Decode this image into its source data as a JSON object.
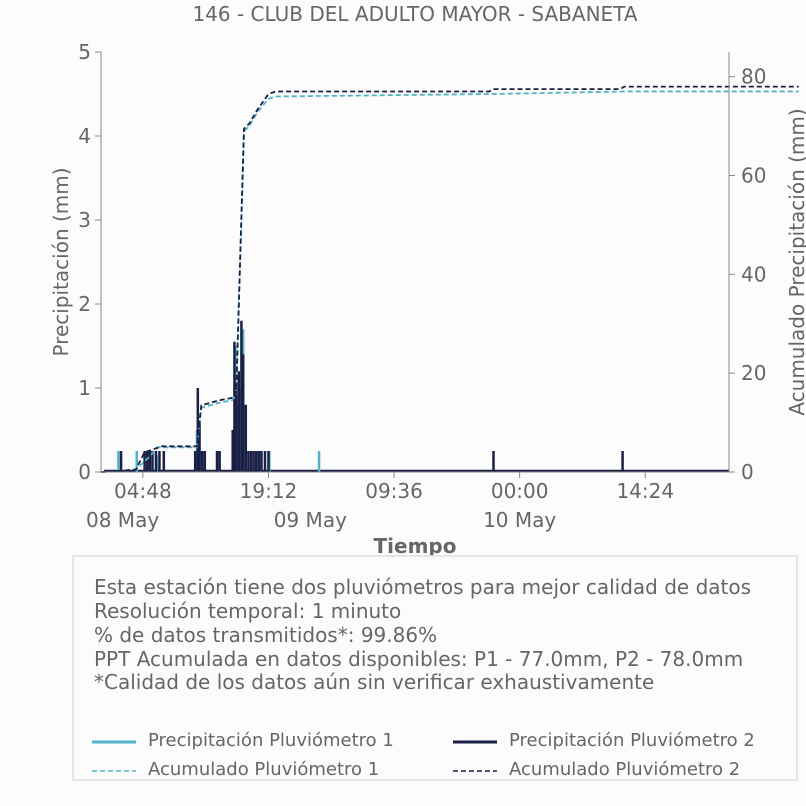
{
  "chart_data": {
    "type": "line",
    "title": "146 - CLUB DEL ADULTO MAYOR - SABANETA",
    "xlabel": "Tiempo",
    "ylabel_left": "Precipitación (mm)",
    "ylabel_right": "Acumulado Precipitación (mm)",
    "ylim_left": [
      0,
      5
    ],
    "ylim_right": [
      0,
      85
    ],
    "x_ticks": [
      "04:48",
      "19:12",
      "09:36",
      "00:00",
      "14:24"
    ],
    "x_date_labels": [
      "08 May",
      "09 May",
      "10 May"
    ],
    "y_ticks_left": [
      "0",
      "1",
      "2",
      "3",
      "4",
      "5"
    ],
    "y_ticks_right": [
      "0",
      "20",
      "40",
      "60",
      "80"
    ],
    "x_unit": "hours since 2024-05-08 00:00",
    "series": [
      {
        "name": "Precipitación Pluviómetro 1",
        "style": "solid",
        "color": "#4fb3c6",
        "spikes": [
          [
            2.0,
            0.25
          ],
          [
            4.1,
            0.25
          ],
          [
            5.5,
            0.25
          ],
          [
            6.4,
            0.2
          ],
          [
            11.0,
            0.5
          ],
          [
            11.4,
            0.25
          ],
          [
            13.5,
            0.25
          ],
          [
            15.4,
            1.5
          ],
          [
            15.7,
            0.8
          ],
          [
            16.0,
            1.0
          ],
          [
            16.3,
            1.7
          ],
          [
            17.2,
            0.25
          ],
          [
            18.2,
            0.25
          ],
          [
            19.3,
            0.25
          ],
          [
            25.0,
            0.25
          ]
        ]
      },
      {
        "name": "Precipitación Pluviómetro 2",
        "style": "solid",
        "color": "#1b1f45",
        "spikes": [
          [
            2.3,
            0.25
          ],
          [
            5.0,
            0.25
          ],
          [
            5.3,
            0.25
          ],
          [
            5.6,
            0.25
          ],
          [
            5.9,
            0.25
          ],
          [
            6.3,
            0.25
          ],
          [
            6.7,
            0.25
          ],
          [
            7.2,
            0.25
          ],
          [
            10.8,
            0.25
          ],
          [
            11.1,
            1.0
          ],
          [
            11.3,
            0.6
          ],
          [
            11.6,
            0.25
          ],
          [
            11.9,
            0.25
          ],
          [
            13.3,
            0.25
          ],
          [
            13.6,
            0.25
          ],
          [
            15.1,
            0.5
          ],
          [
            15.3,
            1.55
          ],
          [
            15.5,
            1.0
          ],
          [
            15.8,
            1.2
          ],
          [
            16.1,
            1.8
          ],
          [
            16.3,
            1.4
          ],
          [
            16.6,
            0.8
          ],
          [
            16.9,
            0.25
          ],
          [
            17.2,
            0.25
          ],
          [
            17.5,
            0.25
          ],
          [
            17.8,
            0.25
          ],
          [
            18.1,
            0.25
          ],
          [
            18.4,
            0.25
          ],
          [
            18.8,
            0.25
          ],
          [
            19.2,
            0.25
          ],
          [
            45.0,
            0.25
          ],
          [
            59.8,
            0.25
          ]
        ]
      },
      {
        "name": "Acumulado Pluviómetro 1",
        "style": "dashed",
        "color": "#4fb3c6",
        "x": [
          0,
          2.0,
          4.0,
          5.5,
          6.5,
          11.0,
          11.5,
          13.5,
          15.0,
          15.5,
          16.4,
          17.0,
          18.0,
          19.2,
          20.0,
          45.0,
          60.0,
          80.0
        ],
        "values": [
          0,
          0.2,
          0.5,
          3.0,
          5.0,
          5.0,
          13.0,
          14.0,
          14.5,
          15.5,
          69.0,
          70.0,
          73.0,
          75.5,
          76.0,
          76.5,
          77.0,
          77.0
        ]
      },
      {
        "name": "Acumulado Pluviómetro 2",
        "style": "dashed",
        "color": "#1b1f45",
        "x": [
          0,
          2.0,
          4.0,
          5.0,
          7.0,
          11.0,
          11.5,
          13.5,
          15.0,
          15.5,
          16.4,
          17.0,
          18.0,
          19.2,
          20.0,
          44.5,
          45.0,
          59.5,
          60.0,
          80.0
        ],
        "values": [
          0,
          0.2,
          0.5,
          4.0,
          5.2,
          5.2,
          13.5,
          14.5,
          15.0,
          16.0,
          69.5,
          70.5,
          73.5,
          76.5,
          77.0,
          77.0,
          77.5,
          77.5,
          78.0,
          78.0
        ]
      }
    ],
    "legend_placement": "bottom"
  },
  "info": {
    "lines": [
      "Esta estación tiene dos pluviómetros para mejor calidad de datos",
      "Resolución temporal: 1 minuto",
      "% de datos transmitidos*: 99.86%",
      "PPT Acumulada en datos disponibles: P1 - 77.0mm, P2 - 78.0mm",
      "*Calidad de los datos aún sin verificar exhaustivamente"
    ],
    "legend": [
      "Precipitación Pluviómetro 1",
      "Precipitación Pluviómetro 2",
      "Acumulado Pluviómetro 1",
      "Acumulado Pluviómetro 2"
    ]
  }
}
